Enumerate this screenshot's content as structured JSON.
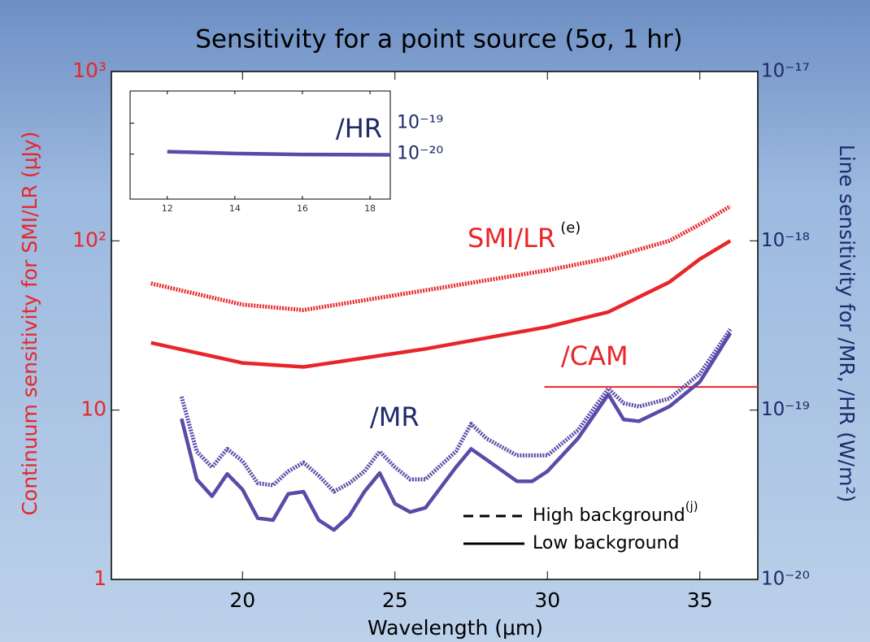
{
  "chart_data": [
    {
      "type": "line",
      "title": "Sensitivity for a point source (5σ, 1 hr)",
      "x_label": "Wavelength (μm)",
      "y_label": "Continuum sensitivity for SMI/LR (μJy)",
      "y2_label": "Line sensitivity for /MR, /HR (W/m²)",
      "xlim": [
        15.7,
        36.9
      ],
      "xticks": [
        20,
        25,
        30,
        35
      ],
      "ylim": [
        1,
        1000
      ],
      "ylog": true,
      "yticks": [
        1,
        10,
        {
          "value": 100,
          "label": "10²"
        },
        {
          "value": 1000,
          "label": "10³"
        }
      ],
      "y2lim": [
        1e-20,
        1e-17
      ],
      "y2log": true,
      "y2ticks": [
        {
          "value": 1e-20,
          "label": "10⁻²⁰"
        },
        {
          "value": 1e-19,
          "label": "10⁻¹⁹"
        },
        {
          "value": 1e-18,
          "label": "10⁻¹⁸"
        },
        {
          "value": 1e-17,
          "label": "10⁻¹⁷"
        }
      ],
      "series": [
        {
          "color": "#e8262a",
          "style": "dotted",
          "x": [
            17,
            20,
            22,
            26,
            30,
            32,
            34,
            35,
            36
          ],
          "values": [
            56,
            42,
            39,
            51,
            67,
            79,
            100,
            125,
            160
          ]
        },
        {
          "color": "#e8262a",
          "style": "solid",
          "x": [
            17,
            20,
            22,
            26,
            30,
            32,
            34,
            35,
            36
          ],
          "values": [
            25,
            19,
            18,
            23,
            31,
            38,
            57,
            78,
            100
          ]
        },
        {
          "color": "#e8262a",
          "style": "thin",
          "x": [
            29.9,
            36.9
          ],
          "values": [
            13.7,
            13.7
          ]
        },
        {
          "color": "#5b4aa8",
          "style": "dotted",
          "axis": "y2",
          "x": [
            18,
            18.5,
            19,
            19.5,
            20,
            20.5,
            21,
            21.5,
            22,
            22.5,
            23,
            23.5,
            24,
            24.5,
            25,
            25.5,
            26,
            27,
            27.5,
            28,
            29,
            29.5,
            30,
            31,
            32,
            32.5,
            33,
            34,
            35,
            36
          ],
          "values": [
            1.2e-19,
            5.7e-20,
            4.6e-20,
            5.9e-20,
            5e-20,
            3.7e-20,
            3.6e-20,
            4.35e-20,
            4.9e-20,
            4.1e-20,
            3.3e-20,
            3.7e-20,
            4.35e-20,
            5.7e-20,
            4.6e-20,
            3.9e-20,
            3.9e-20,
            5.7e-20,
            8.3e-20,
            6.8e-20,
            5.4e-20,
            5.4e-20,
            5.4e-20,
            7.6e-20,
            1.34e-19,
            1.1e-19,
            1.05e-19,
            1.17e-19,
            1.64e-19,
            3e-19
          ]
        },
        {
          "color": "#5b4aa8",
          "style": "solid",
          "axis": "y2",
          "x": [
            18,
            18.5,
            19,
            19.5,
            20,
            20.5,
            21,
            21.5,
            22,
            22.5,
            23,
            23.5,
            24,
            24.5,
            25,
            25.5,
            26,
            27,
            27.5,
            28,
            29,
            29.5,
            30,
            31,
            32,
            32.5,
            33,
            34,
            35,
            36
          ],
          "values": [
            8.9e-20,
            3.9e-20,
            3.1e-20,
            4.2e-20,
            3.4e-20,
            2.3e-20,
            2.24e-20,
            3.2e-20,
            3.3e-20,
            2.24e-20,
            1.96e-20,
            2.37e-20,
            3.3e-20,
            4.25e-20,
            2.8e-20,
            2.5e-20,
            2.65e-20,
            4.6e-20,
            5.9e-20,
            5.1e-20,
            3.8e-20,
            3.8e-20,
            4.35e-20,
            6.8e-20,
            1.24e-19,
            8.8e-20,
            8.6e-20,
            1.05e-19,
            1.47e-19,
            2.85e-19
          ]
        }
      ],
      "annotations": [
        {
          "text": "SMI/LR",
          "sup": "(e)"
        },
        {
          "text": "/CAM"
        },
        {
          "text": "/MR"
        }
      ],
      "legend": [
        {
          "label": "High background",
          "sup": "(j)",
          "style": "dashed"
        },
        {
          "label": "Low background",
          "style": "solid"
        }
      ]
    },
    {
      "type": "line",
      "label": "/HR",
      "xlim": [
        10.9,
        18.6
      ],
      "xticks": [
        12,
        14,
        16,
        18
      ],
      "ylim": [
        3.5e-22,
        1.1e-18
      ],
      "ylog": true,
      "yticks": [
        {
          "value": 1e-19,
          "label": "10⁻¹⁹"
        },
        {
          "value": 1e-20,
          "label": "10⁻²⁰"
        }
      ],
      "series": [
        {
          "color": "#5b4aa8",
          "style": "solid",
          "x": [
            12,
            14,
            16,
            18.6
          ],
          "values": [
            1.2e-20,
            1.05e-20,
            9.7e-21,
            9.5e-21
          ]
        }
      ]
    }
  ]
}
